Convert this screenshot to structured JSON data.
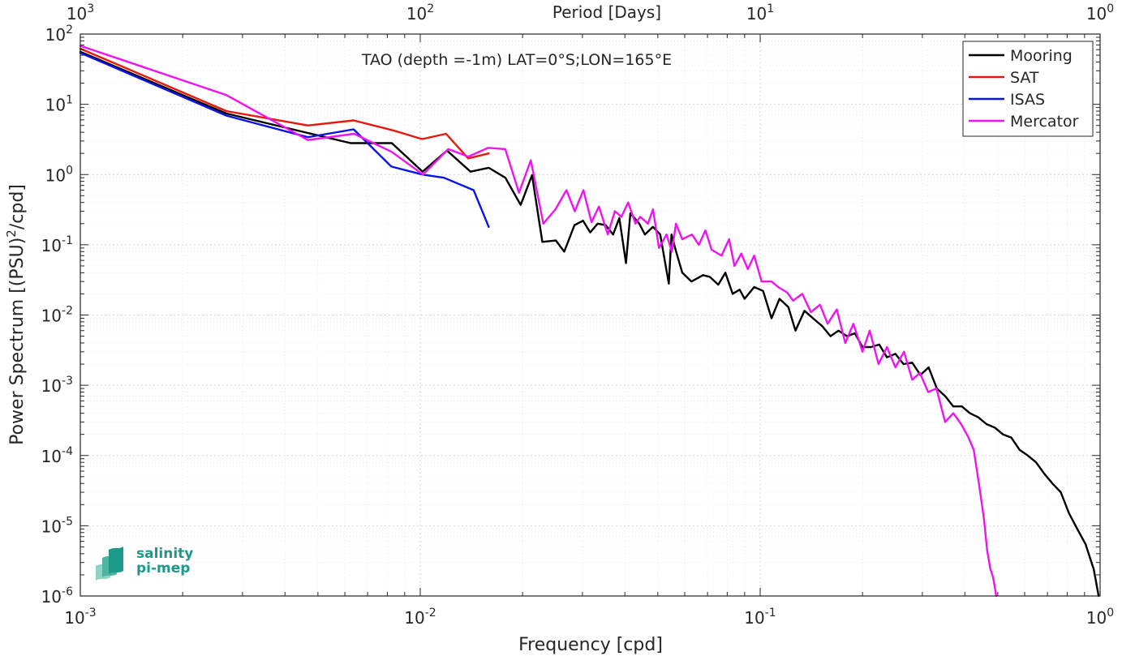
{
  "chart_data": {
    "type": "line",
    "title": "TAO (depth =-1m) LAT=0°S;LON=165°E",
    "xlabel": "Frequency [cpd]",
    "ylabel": "Power Spectrum [(PSU)",
    "ylabel_sup": "2",
    "ylabel_tail": "/cpd]",
    "top_axis_label": "Period [Days]",
    "x_scale": "log",
    "y_scale": "log",
    "xlim": [
      0.001,
      1
    ],
    "ylim": [
      1e-06,
      100
    ],
    "grid": true,
    "legend_position": "top-right",
    "x_ticks": [
      {
        "value": 0.001,
        "base": "10",
        "exp": "-3"
      },
      {
        "value": 0.01,
        "base": "10",
        "exp": "-2"
      },
      {
        "value": 0.1,
        "base": "10",
        "exp": "-1"
      },
      {
        "value": 1,
        "base": "10",
        "exp": "0"
      }
    ],
    "top_ticks": [
      {
        "value": 0.001,
        "base": "10",
        "exp": "3"
      },
      {
        "value": 0.01,
        "base": "10",
        "exp": "2"
      },
      {
        "value": 0.1,
        "base": "10",
        "exp": "1"
      },
      {
        "value": 1,
        "base": "10",
        "exp": "0"
      }
    ],
    "y_ticks": [
      {
        "value": 100,
        "base": "10",
        "exp": "2"
      },
      {
        "value": 10,
        "base": "10",
        "exp": "1"
      },
      {
        "value": 1,
        "base": "10",
        "exp": "0"
      },
      {
        "value": 0.1,
        "base": "10",
        "exp": "-1"
      },
      {
        "value": 0.01,
        "base": "10",
        "exp": "-2"
      },
      {
        "value": 0.001,
        "base": "10",
        "exp": "-3"
      },
      {
        "value": 0.0001,
        "base": "10",
        "exp": "-4"
      },
      {
        "value": 1e-05,
        "base": "10",
        "exp": "-5"
      },
      {
        "value": 1e-06,
        "base": "10",
        "exp": "-6"
      }
    ],
    "series": [
      {
        "name": "Mooring",
        "color": "#000000",
        "x": [
          0.001,
          0.00269,
          0.00467,
          0.00624,
          0.00825,
          0.01016,
          0.01198,
          0.01406,
          0.0159,
          0.0178,
          0.01974,
          0.02133,
          0.02287,
          0.02507,
          0.02652,
          0.02843,
          0.03013,
          0.03163,
          0.03326,
          0.03514,
          0.03692,
          0.03852,
          0.0403,
          0.0415,
          0.0441,
          0.04579,
          0.04837,
          0.0508,
          0.05385,
          0.05485,
          0.05658,
          0.059,
          0.0628,
          0.0679,
          0.0711,
          0.0753,
          0.079,
          0.083,
          0.087,
          0.09,
          0.096,
          0.102,
          0.108,
          0.114,
          0.121,
          0.127,
          0.135,
          0.143,
          0.152,
          0.161,
          0.17,
          0.18,
          0.19,
          0.2,
          0.212,
          0.224,
          0.236,
          0.25,
          0.264,
          0.28,
          0.296,
          0.313,
          0.331,
          0.35,
          0.37,
          0.392,
          0.414,
          0.438,
          0.463,
          0.49,
          0.518,
          0.548,
          0.58,
          0.613,
          0.648,
          0.685,
          0.724,
          0.766,
          0.81,
          0.857,
          0.906,
          0.958,
          0.99
        ],
        "y": [
          56,
          7.4,
          3.9,
          2.8,
          2.8,
          1.1,
          2.2,
          1.1,
          1.25,
          0.9,
          0.37,
          0.98,
          0.11,
          0.115,
          0.08,
          0.19,
          0.22,
          0.15,
          0.2,
          0.19,
          0.14,
          0.24,
          0.055,
          0.28,
          0.2,
          0.14,
          0.18,
          0.14,
          0.028,
          0.14,
          0.08,
          0.04,
          0.03,
          0.037,
          0.035,
          0.027,
          0.04,
          0.02,
          0.023,
          0.017,
          0.025,
          0.022,
          0.009,
          0.017,
          0.013,
          0.006,
          0.0115,
          0.009,
          0.007,
          0.005,
          0.006,
          0.005,
          0.0055,
          0.0035,
          0.0035,
          0.0038,
          0.0025,
          0.0028,
          0.002,
          0.0021,
          0.0014,
          0.0018,
          0.0009,
          0.0007,
          0.0005,
          0.0005,
          0.0004,
          0.00035,
          0.00028,
          0.00025,
          0.0002,
          0.00018,
          0.00012,
          0.0001,
          8e-05,
          5.5e-05,
          4e-05,
          3e-05,
          1.5e-05,
          9e-06,
          5.5e-06,
          2.4e-06,
          1e-06
        ]
      },
      {
        "name": "SAT",
        "color": "#e8170a",
        "x": [
          0.001,
          0.00269,
          0.00467,
          0.00637,
          0.00826,
          0.01012,
          0.01191,
          0.01384,
          0.0159
        ],
        "y": [
          62,
          8.0,
          5.0,
          5.9,
          4.3,
          3.2,
          3.8,
          1.7,
          2.0
        ]
      },
      {
        "name": "ISAS",
        "color": "#0a14e8",
        "x": [
          0.001,
          0.00269,
          0.00467,
          0.00637,
          0.00822,
          0.01016,
          0.01174,
          0.01436,
          0.0159
        ],
        "y": [
          54,
          6.9,
          3.4,
          4.4,
          1.3,
          1.0,
          0.9,
          0.6,
          0.18
        ]
      },
      {
        "name": "Mercator",
        "color": "#f012f0",
        "x": [
          0.001,
          0.00269,
          0.00467,
          0.00639,
          0.00824,
          0.01019,
          0.01209,
          0.01385,
          0.01584,
          0.01779,
          0.01952,
          0.02115,
          0.02302,
          0.02499,
          0.02692,
          0.02848,
          0.03019,
          0.0319,
          0.03355,
          0.03563,
          0.03738,
          0.03908,
          0.0409,
          0.04298,
          0.04436,
          0.04677,
          0.04838,
          0.0504,
          0.05305,
          0.055,
          0.05653,
          0.059,
          0.063,
          0.066,
          0.069,
          0.072,
          0.077,
          0.081,
          0.084,
          0.088,
          0.092,
          0.096,
          0.101,
          0.108,
          0.113,
          0.12,
          0.125,
          0.133,
          0.141,
          0.15,
          0.158,
          0.168,
          0.178,
          0.188,
          0.2,
          0.21,
          0.223,
          0.236,
          0.25,
          0.265,
          0.28,
          0.295,
          0.312,
          0.33,
          0.35,
          0.37,
          0.39,
          0.41,
          0.425,
          0.44,
          0.455,
          0.465,
          0.475,
          0.485,
          0.495
        ],
        "y": [
          68,
          13.5,
          3.1,
          3.8,
          2.1,
          1.0,
          2.3,
          1.8,
          2.4,
          2.3,
          0.55,
          1.6,
          0.2,
          0.32,
          0.6,
          0.3,
          0.6,
          0.21,
          0.35,
          0.14,
          0.3,
          0.25,
          0.4,
          0.2,
          0.25,
          0.2,
          0.32,
          0.09,
          0.14,
          0.08,
          0.2,
          0.12,
          0.14,
          0.1,
          0.16,
          0.085,
          0.07,
          0.12,
          0.05,
          0.075,
          0.045,
          0.07,
          0.03,
          0.03,
          0.025,
          0.021,
          0.016,
          0.02,
          0.011,
          0.014,
          0.0075,
          0.012,
          0.004,
          0.0075,
          0.003,
          0.006,
          0.002,
          0.0035,
          0.0018,
          0.003,
          0.0012,
          0.0015,
          0.0008,
          0.0009,
          0.0003,
          0.0004,
          0.00028,
          0.00018,
          0.00012,
          4e-05,
          1.3e-05,
          4.5e-06,
          2.5e-06,
          1.8e-06,
          1e-06
        ]
      }
    ]
  },
  "logo": {
    "line1": "salinity",
    "line2": "pi-mep"
  }
}
